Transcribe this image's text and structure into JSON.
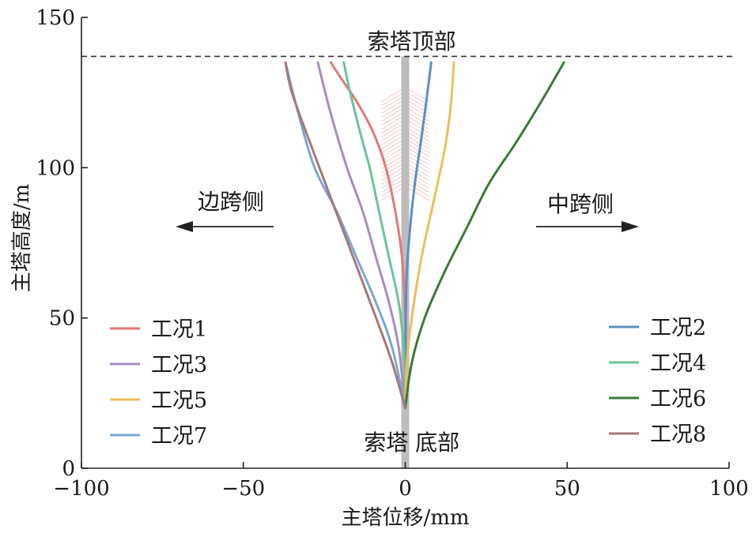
{
  "chart_data": {
    "type": "line",
    "title": "",
    "xlabel": "主塔位移/mm",
    "ylabel": "主塔高度/m",
    "xlim": [
      -100,
      100
    ],
    "ylim": [
      0,
      150
    ],
    "xticks": [
      -100,
      -50,
      0,
      50,
      100
    ],
    "xtick_labels": [
      "−100",
      "−50",
      "0",
      "50",
      "100"
    ],
    "yticks": [
      0,
      50,
      100,
      150
    ],
    "ytick_labels": [
      "0",
      "50",
      "100",
      "150"
    ],
    "grid": false,
    "legend_placement": "lower-left and lower-right",
    "tower_top_height": 137,
    "tower_top_line": {
      "x": [
        -100,
        100
      ],
      "y": [
        137,
        137
      ]
    },
    "annotations": {
      "tower_top": "索塔顶部",
      "tower_bottom": "索塔 底部",
      "side_span": "边跨侧",
      "mid_span": "中跨侧"
    },
    "series": [
      {
        "name": "工况1",
        "color": "#e07a7a",
        "x": [
          0,
          0,
          -1,
          -3,
          -6,
          -10,
          -15,
          -20,
          -23
        ],
        "y": [
          20,
          50,
          70,
          85,
          100,
          112,
          122,
          130,
          135
        ]
      },
      {
        "name": "工况2",
        "color": "#5b8fc7",
        "x": [
          0,
          0.3,
          1.5,
          3,
          5,
          6.5,
          8
        ],
        "y": [
          20,
          60,
          80,
          95,
          110,
          122,
          135
        ]
      },
      {
        "name": "工况3",
        "color": "#a58ec0",
        "x": [
          0,
          -2,
          -5,
          -9,
          -13,
          -18,
          -23,
          -27
        ],
        "y": [
          20,
          40,
          55,
          70,
          85,
          100,
          118,
          135
        ]
      },
      {
        "name": "工况4",
        "color": "#6cc39a",
        "x": [
          0,
          -0.5,
          -2,
          -5,
          -8,
          -11,
          -14,
          -17,
          -19
        ],
        "y": [
          25,
          40,
          55,
          70,
          85,
          100,
          112,
          125,
          135
        ]
      },
      {
        "name": "工况5",
        "color": "#eebe5a",
        "x": [
          0,
          0.5,
          2,
          5,
          9,
          12,
          14,
          15
        ],
        "y": [
          20,
          35,
          50,
          70,
          90,
          105,
          120,
          135
        ]
      },
      {
        "name": "工况6",
        "color": "#3a7a3a",
        "x": [
          0,
          2,
          6,
          12,
          19,
          26,
          34,
          42,
          49
        ],
        "y": [
          20,
          35,
          50,
          65,
          80,
          95,
          108,
          122,
          135
        ]
      },
      {
        "name": "工况7",
        "color": "#7aa8d0",
        "x": [
          0,
          -4,
          -9,
          -15,
          -21,
          -28,
          -33,
          -37
        ],
        "y": [
          20,
          40,
          55,
          70,
          85,
          100,
          118,
          135
        ]
      },
      {
        "name": "工况8",
        "color": "#a77878",
        "x": [
          0,
          -4,
          -9,
          -16,
          -23,
          -30,
          -35,
          -37
        ],
        "y": [
          20,
          35,
          50,
          70,
          90,
          110,
          125,
          135
        ]
      }
    ]
  },
  "legend_left": [
    "工况1",
    "工况3",
    "工况5",
    "工况7"
  ],
  "legend_right": [
    "工况2",
    "工况4",
    "工况6",
    "工况8"
  ]
}
